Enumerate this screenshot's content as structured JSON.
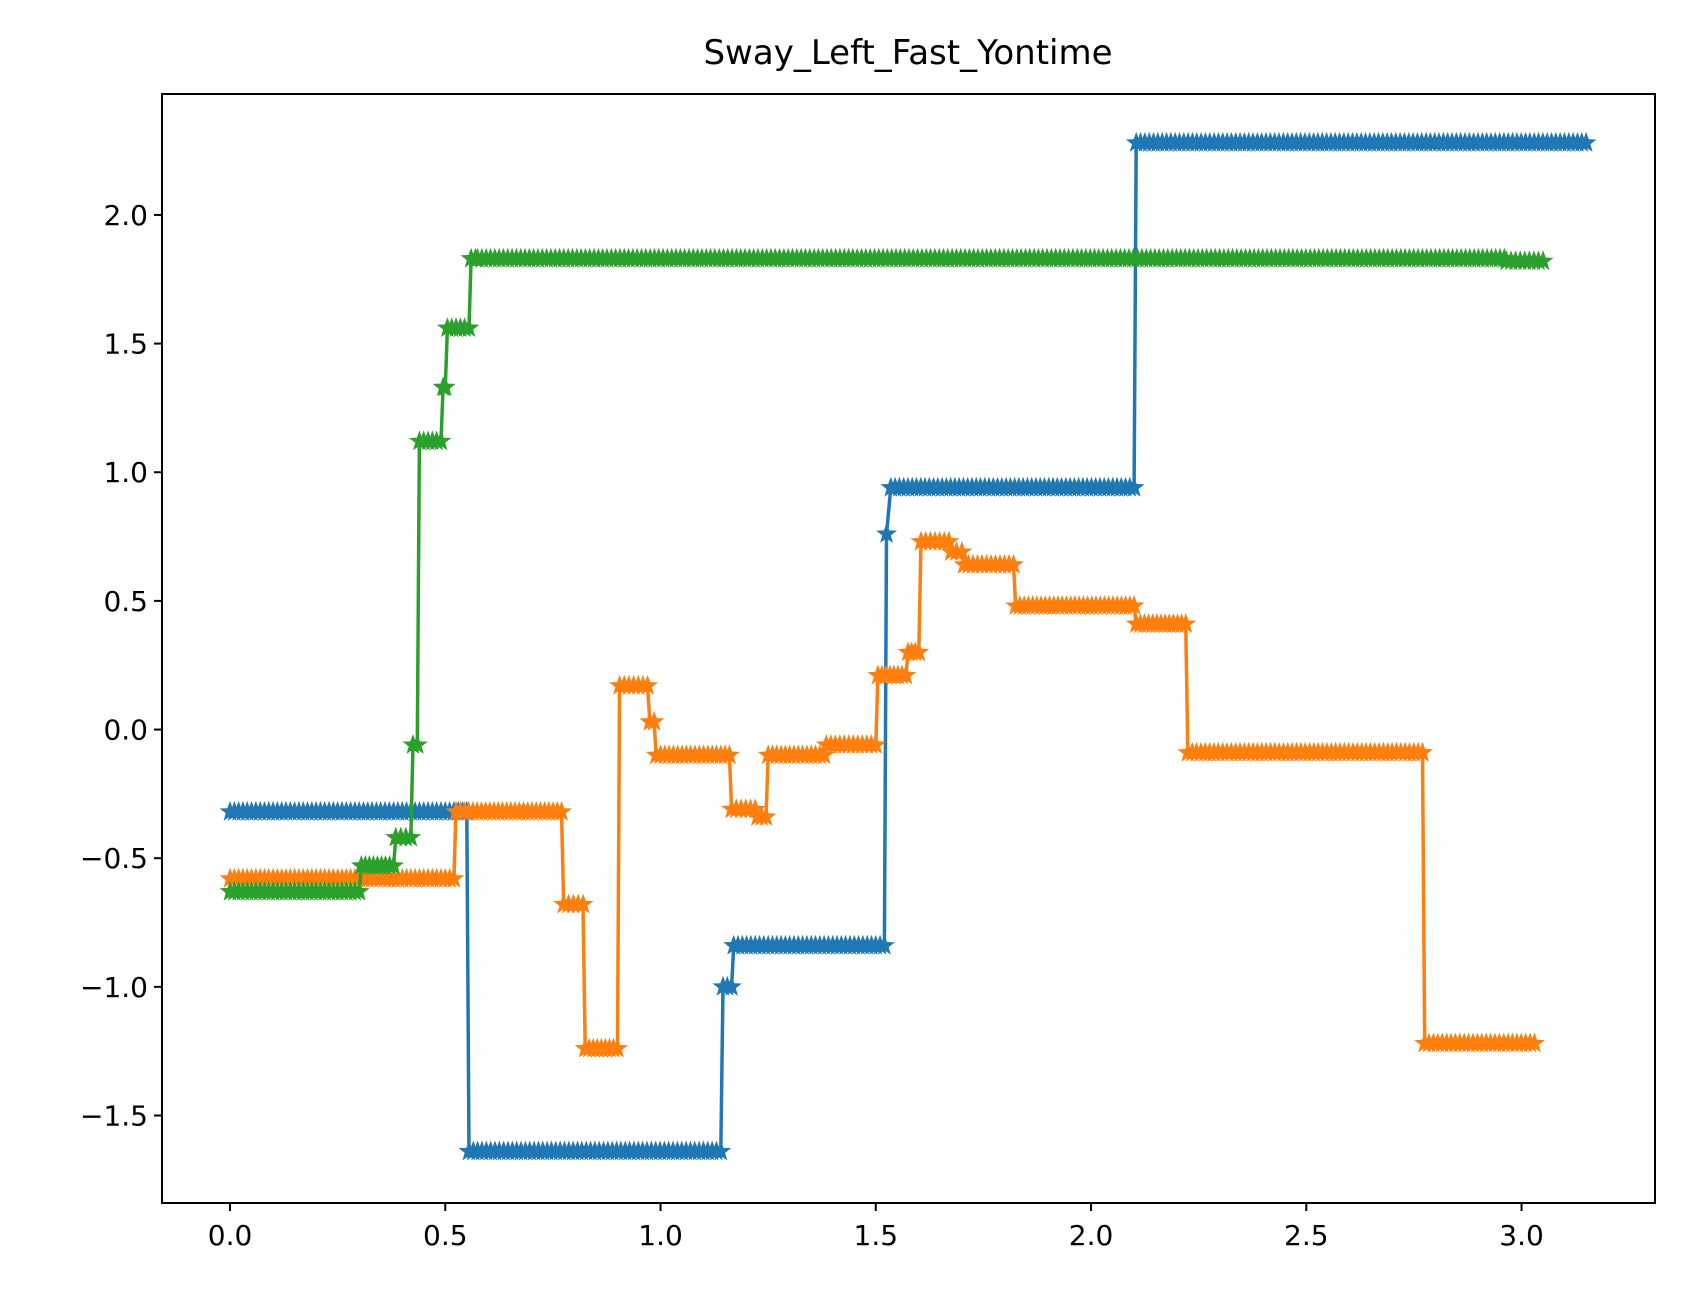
{
  "chart_data": {
    "type": "line",
    "title": "Sway_Left_Fast_Yontime",
    "xlabel": "",
    "ylabel": "",
    "xlim": [
      -0.158,
      3.31
    ],
    "ylim": [
      -1.84,
      2.47
    ],
    "xticks": [
      0.0,
      0.5,
      1.0,
      1.5,
      2.0,
      2.5,
      3.0
    ],
    "xtick_labels": [
      "0.0",
      "0.5",
      "1.0",
      "1.5",
      "2.0",
      "2.5",
      "3.0"
    ],
    "yticks": [
      -1.5,
      -1.0,
      -0.5,
      0.0,
      0.5,
      1.0,
      1.5,
      2.0
    ],
    "ytick_labels": [
      "−1.5",
      "−1.0",
      "−0.5",
      "0.0",
      "0.5",
      "1.0",
      "1.5",
      "2.0"
    ],
    "grid": false,
    "legend": "none",
    "marker": "star",
    "series": [
      {
        "color": "#1f77b4",
        "x": [
          0.0,
          0.55,
          0.555,
          1.14,
          1.145,
          1.165,
          1.17,
          1.52,
          1.525,
          1.535,
          2.1,
          2.105,
          3.15
        ],
        "y": [
          -0.32,
          -0.32,
          -1.64,
          -1.64,
          -1.0,
          -1.0,
          -0.84,
          -0.84,
          0.76,
          0.94,
          0.94,
          2.28,
          2.28
        ]
      },
      {
        "color": "#ff7f0e",
        "x": [
          0.0,
          0.52,
          0.525,
          0.77,
          0.775,
          0.82,
          0.825,
          0.9,
          0.905,
          0.97,
          0.975,
          0.985,
          0.99,
          1.16,
          1.165,
          1.22,
          1.225,
          1.245,
          1.25,
          1.38,
          1.385,
          1.5,
          1.505,
          1.57,
          1.575,
          1.6,
          1.605,
          1.67,
          1.675,
          1.7,
          1.705,
          1.82,
          1.825,
          2.1,
          2.105,
          2.22,
          2.225,
          2.77,
          2.775,
          3.03
        ],
        "y": [
          -0.58,
          -0.58,
          -0.32,
          -0.32,
          -0.68,
          -0.68,
          -1.24,
          -1.24,
          0.17,
          0.17,
          0.03,
          0.03,
          -0.1,
          -0.1,
          -0.31,
          -0.31,
          -0.34,
          -0.34,
          -0.1,
          -0.1,
          -0.06,
          -0.06,
          0.21,
          0.21,
          0.3,
          0.3,
          0.73,
          0.73,
          0.69,
          0.69,
          0.64,
          0.64,
          0.48,
          0.48,
          0.41,
          0.41,
          -0.09,
          -0.09,
          -1.22,
          -1.22
        ]
      },
      {
        "color": "#2ca02c",
        "x": [
          0.0,
          0.3,
          0.305,
          0.38,
          0.385,
          0.42,
          0.425,
          0.435,
          0.44,
          0.49,
          0.495,
          0.5,
          0.505,
          0.555,
          0.56,
          0.57,
          0.575,
          2.96,
          2.965,
          3.05
        ],
        "y": [
          -0.63,
          -0.63,
          -0.53,
          -0.53,
          -0.42,
          -0.42,
          -0.06,
          -0.06,
          1.12,
          1.12,
          1.33,
          1.33,
          1.56,
          1.56,
          1.83,
          1.83,
          1.83,
          1.83,
          1.82,
          1.82
        ]
      }
    ]
  }
}
